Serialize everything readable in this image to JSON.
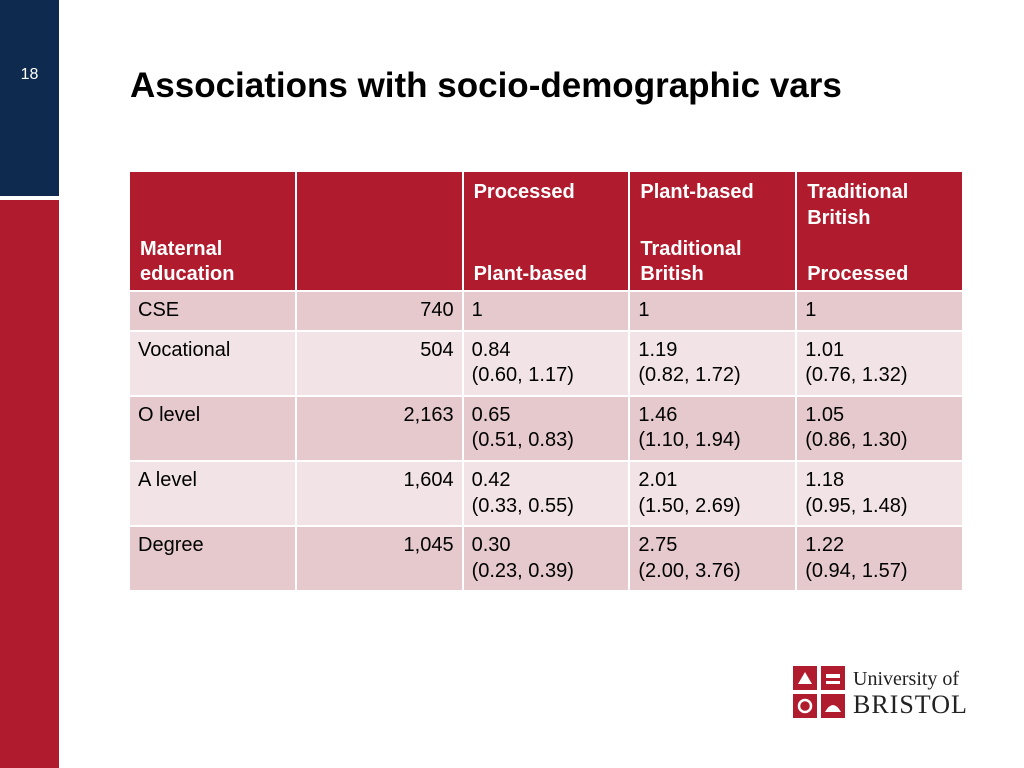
{
  "slide": {
    "number": "18",
    "title": "Associations with socio-demographic vars"
  },
  "table": {
    "headers": [
      {
        "top": "",
        "bottom": "Maternal\neducation"
      },
      {
        "top": "",
        "bottom": ""
      },
      {
        "top": "Processed",
        "bottom": "Plant-based"
      },
      {
        "top": "Plant-based",
        "bottom": "Traditional\nBritish"
      },
      {
        "top": "Traditional\nBritish",
        "bottom": "Processed"
      }
    ],
    "rows": [
      {
        "label": "CSE",
        "n": "740",
        "processed": "1",
        "plant_based": "1",
        "traditional": "1"
      },
      {
        "label": "Vocational",
        "n": "504",
        "processed": "0.84\n(0.60, 1.17)",
        "plant_based": "1.19\n(0.82, 1.72)",
        "traditional": "1.01\n(0.76, 1.32)"
      },
      {
        "label": "O level",
        "n": "2,163",
        "processed": "0.65\n(0.51, 0.83)",
        "plant_based": "1.46\n(1.10, 1.94)",
        "traditional": "1.05\n(0.86, 1.30)"
      },
      {
        "label": "A level",
        "n": "1,604",
        "processed": "0.42\n(0.33, 0.55)",
        "plant_based": "2.01\n(1.50, 2.69)",
        "traditional": "1.18\n(0.95, 1.48)"
      },
      {
        "label": "Degree",
        "n": "1,045",
        "processed": "0.30\n(0.23, 0.39)",
        "plant_based": "2.75\n(2.00, 3.76)",
        "traditional": "1.22\n(0.94, 1.57)"
      }
    ]
  },
  "logo": {
    "line1": "University of",
    "line2": "BRISTOL"
  },
  "colors": {
    "navy": "#0f2a4f",
    "crimson": "#b01c2e",
    "row_odd": "#e5c9cd",
    "row_even": "#f2e4e6"
  }
}
